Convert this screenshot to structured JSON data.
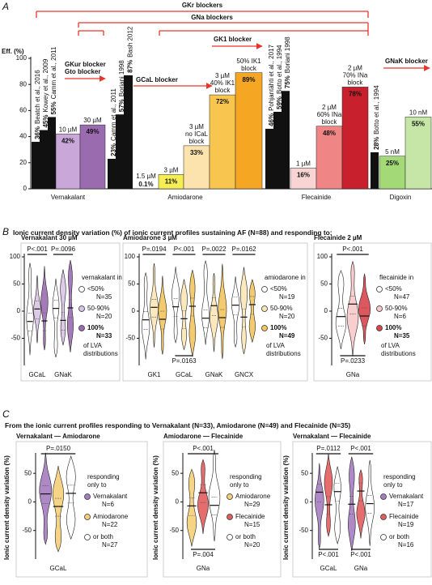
{
  "panel_labels": [
    "A",
    "B",
    "C"
  ],
  "headings": [
    "Ionic current density variation (%) of ionic current profiles sustaining AF (N=88) and responding to:",
    "From the ionic current profiles responding to Vernakalant (N=33), Amiodarone (N=49) and Flecainide (N=35)"
  ],
  "chart_data": [
    {
      "type": "bar",
      "ylabel": "Eff. (%)",
      "ylim": [
        0,
        100
      ],
      "yticks": [
        0,
        20,
        40,
        60,
        80,
        100
      ],
      "groups": [
        "Vernakalant",
        "Amiodarone",
        "Flecainide",
        "Digoxin"
      ],
      "values": [
        36,
        45,
        55,
        42,
        49,
        23,
        57,
        87,
        0.1,
        11,
        33,
        72,
        89,
        46,
        59,
        75,
        16,
        48,
        78,
        28,
        25,
        55
      ],
      "value_labels": [
        "36%",
        "45%",
        "55%",
        "42%",
        "49%",
        "23%",
        "57%",
        "87%",
        "0.1%",
        "11%",
        "33%",
        "72%",
        "89%",
        "46%",
        "59%",
        "75%",
        "16%",
        "48%",
        "78%",
        "28%",
        "25%",
        "55%"
      ],
      "colors": [
        "#111111",
        "#111111",
        "#111111",
        "#c9a7d8",
        "#9b6bb0",
        "#111111",
        "#111111",
        "#111111",
        "#fdf6c8",
        "#f5ee55",
        "#fce3ad",
        "#f8c64e",
        "#f5a623",
        "#111111",
        "#111111",
        "#111111",
        "#f9d4d4",
        "#ef8585",
        "#c8202d",
        "#111111",
        "#a3d977",
        "#c5e6a6"
      ],
      "value_label_colors": [
        "#111111",
        "#111111",
        "#111111",
        "#ffffff",
        "#ffffff",
        "#111111",
        "#111111",
        "#111111",
        "#111111",
        "#111111",
        "#111111",
        "#111111",
        "#111111",
        "#111111",
        "#111111",
        "#111111",
        "#111111",
        "#ffffff",
        "#ffffff",
        "#111111",
        "#111111",
        "#111111"
      ],
      "notes": [
        [
          "Beatch et al., 2016"
        ],
        [
          "Kowey et al., 2009"
        ],
        [
          "Camm et al., 2011"
        ],
        [
          "10 µM"
        ],
        [
          "30 µM"
        ],
        [
          "Camm et al., 2011"
        ],
        [
          "Boriani 1998"
        ],
        [
          "Bash 2012"
        ],
        [
          "1.5 µM"
        ],
        [
          "3 µM"
        ],
        [
          "3 µM",
          "no ICaL",
          "block"
        ],
        [
          "3 µM",
          "40% IK1",
          "block"
        ],
        [
          "50% IK1",
          "block"
        ],
        [
          "Pohjantähti et al., 2017"
        ],
        [
          "Botto et al., 1994"
        ],
        [
          "Boriani 1998"
        ],
        [
          "1 µM"
        ],
        [
          "2 µM",
          "60% INa",
          "block"
        ],
        [
          "2 µM",
          "70% INa",
          "block"
        ],
        [
          "Botto et al., 1994"
        ],
        [
          "5 nM"
        ],
        [
          "10 nM"
        ]
      ],
      "annotations": [
        "GKr blockers",
        "GNa blockers",
        "GKur blocker",
        "Gto blocker",
        "GCaL blocker",
        "GK1 blocker",
        "GNaK blocker"
      ],
      "annotation_color": "#e8352a"
    },
    {
      "type": "violin",
      "title": "Vernakalant 30 µM",
      "categories": [
        "GCaL",
        "GNaK"
      ],
      "ylim": [
        -100,
        100
      ],
      "yticks": [
        -50,
        0,
        50,
        100
      ],
      "pvalues_top": [
        "P<.001",
        "P=.0096"
      ],
      "pvalues_bottom": [],
      "legend_title": [
        "vernakalant in"
      ],
      "series": [
        {
          "name": "<50%",
          "n": "N=35",
          "color": "#ffffff"
        },
        {
          "name": "50-90%",
          "n": "N=20",
          "color": "#d9c4e4"
        },
        {
          "name": "100%",
          "n": "N=33",
          "color": "#9b6bb0"
        }
      ],
      "legend_footer": [
        "of LVA",
        "distributions"
      ]
    },
    {
      "type": "violin",
      "title": "Amiodarone 3 µM",
      "categories": [
        "GK1",
        "GCaL",
        "GNaK",
        "GNCX"
      ],
      "ylim": [
        -100,
        100
      ],
      "yticks": [
        -50,
        0,
        50,
        100
      ],
      "pvalues_top": [
        "P=.0194",
        "P<.001",
        "P=.0022",
        "P=.0162"
      ],
      "pvalues_bottom": [
        "P=.0163"
      ],
      "legend_title": [
        "amiodarone in"
      ],
      "series": [
        {
          "name": "<50%",
          "n": "N=19",
          "color": "#ffffff"
        },
        {
          "name": "50-90%",
          "n": "N=20",
          "color": "#fbe6b6"
        },
        {
          "name": "100%",
          "n": "N=49",
          "color": "#f2c55e"
        }
      ],
      "legend_footer": [
        "of LVA",
        "distributions"
      ]
    },
    {
      "type": "violin",
      "title": "Flecainide 2 µM",
      "categories": [
        "GNa"
      ],
      "ylim": [
        -100,
        100
      ],
      "yticks": [
        -50,
        0,
        50,
        100
      ],
      "pvalues_top": [
        "P<.001"
      ],
      "pvalues_bottom": [
        "P=.0233"
      ],
      "legend_title": [
        "flecainide in"
      ],
      "series": [
        {
          "name": "<50%",
          "n": "N=47",
          "color": "#ffffff"
        },
        {
          "name": "50-90%",
          "n": "N=6",
          "color": "#f7c9c9"
        },
        {
          "name": "100%",
          "n": "N=35",
          "color": "#d9454c"
        }
      ],
      "legend_footer": [
        "of LVA",
        "distributions"
      ]
    },
    {
      "type": "violin",
      "title": "Vernakalant — Amiodarone",
      "ylabel": "Ionic current density variation (%)",
      "categories": [
        "GCaL"
      ],
      "ylim": [
        -100,
        80
      ],
      "yticks": [
        -50,
        0,
        50
      ],
      "pvalues_top": [
        "P=.0150"
      ],
      "pvalues_bottom": [],
      "legend_title": [
        "responding",
        "only to"
      ],
      "series": [
        {
          "name": "Vernakalant",
          "n": "N=6",
          "color": "#a57cc0"
        },
        {
          "name": "Amiodarone",
          "n": "N=22",
          "color": "#f5cf78"
        },
        {
          "name": "or both",
          "n": "N=27",
          "color": "#ffffff"
        }
      ]
    },
    {
      "type": "violin",
      "title": "Amiodarone — Flecainide",
      "ylabel": "Ionic current density variation (%)",
      "categories": [
        "GNa"
      ],
      "ylim": [
        -100,
        80
      ],
      "yticks": [
        -50,
        0,
        50
      ],
      "pvalues_top": [
        "P<.001"
      ],
      "pvalues_bottom": [
        "P=.004"
      ],
      "legend_title": [
        "responding",
        "only to"
      ],
      "series": [
        {
          "name": "Amiodarone",
          "n": "N=29",
          "color": "#f5cf78"
        },
        {
          "name": "Flecainide",
          "n": "N=15",
          "color": "#e25d5d"
        },
        {
          "name": "or both",
          "n": "N=20",
          "color": "#ffffff"
        }
      ]
    },
    {
      "type": "violin",
      "title": "Vernakalant — Flecainide",
      "ylabel": "Ionic current density variation (%)",
      "categories": [
        "GCaL",
        "GNa"
      ],
      "ylim": [
        -100,
        80
      ],
      "yticks": [
        -50,
        0,
        50
      ],
      "pvalues_top": [
        "P=.0112",
        "P<.001"
      ],
      "pvalues_bottom": [
        "P<.001",
        "P<.001"
      ],
      "legend_title": [
        "responding",
        "only to"
      ],
      "series": [
        {
          "name": "Vernakalant",
          "n": "N=17",
          "color": "#a57cc0"
        },
        {
          "name": "Flecainide",
          "n": "N=19",
          "color": "#e25d5d"
        },
        {
          "name": "or both",
          "n": "N=16",
          "color": "#ffffff"
        }
      ]
    }
  ]
}
